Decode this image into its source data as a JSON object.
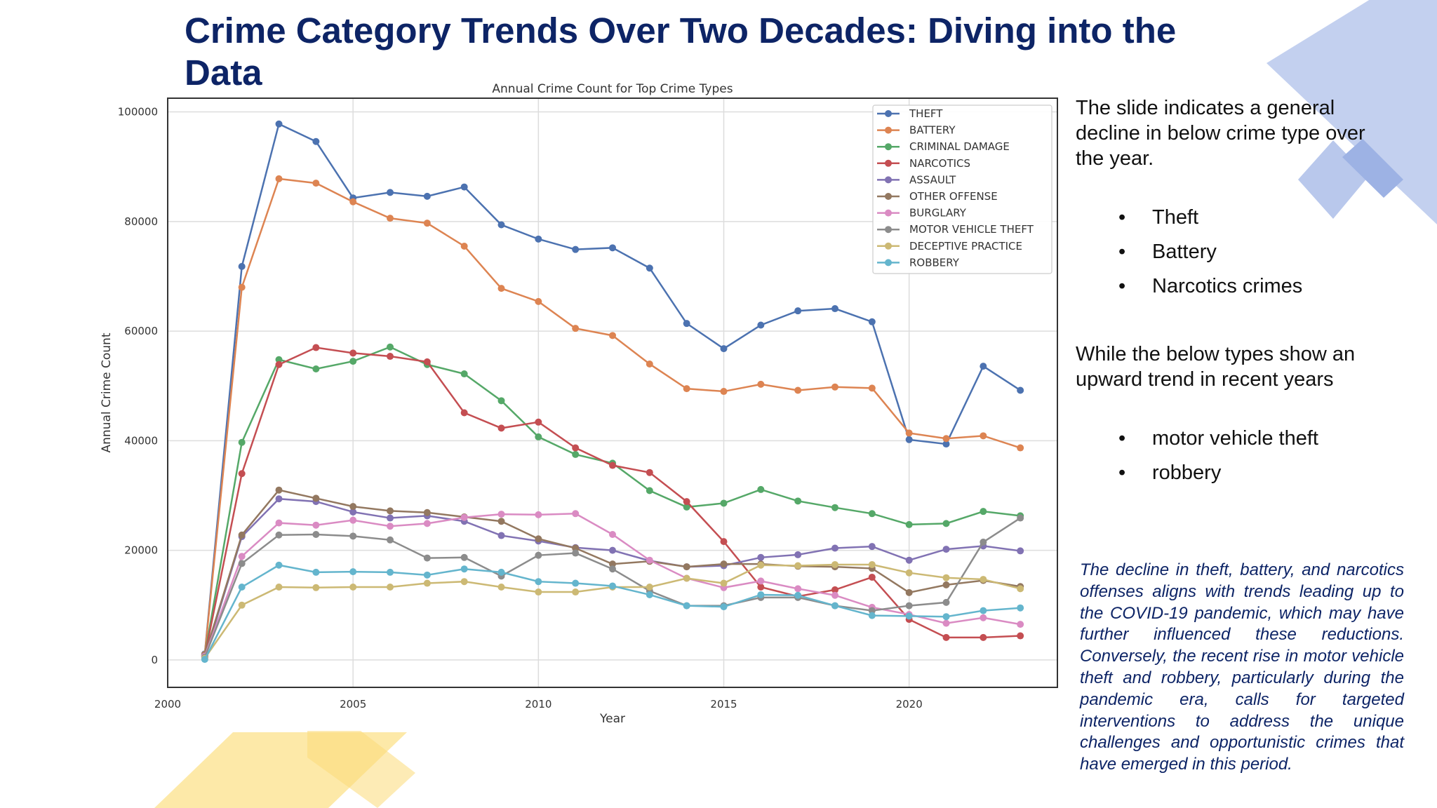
{
  "slide": {
    "title": "Crime Category Trends Over Two Decades: Diving into the Data",
    "intro": "The slide indicates a general decline in below crime type over the year.",
    "decline_items": [
      "Theft",
      "Battery",
      "Narcotics crimes"
    ],
    "upward_intro": "While the below types show an upward trend in recent years",
    "upward_items": [
      "motor vehicle theft",
      "robbery"
    ],
    "note": "The decline in theft, battery, and narcotics offenses aligns with trends leading up to the COVID-19 pandemic, which may have further influenced these reductions. Conversely, the recent rise in motor vehicle theft and robbery, particularly during the pandemic era, calls for targeted interventions to address the unique challenges and opportunistic crimes that have emerged in this period.",
    "bullet_symbol": "•"
  },
  "colors": {
    "title": "#0d2466",
    "note": "#0d2466",
    "deco_blue": "#b9c8ec",
    "deco_blue_dark": "#9db2e4",
    "deco_yellow": "#fde9a8",
    "deco_yellow_dark": "#fcdb78"
  },
  "chart_data": {
    "type": "line",
    "title": "Annual Crime Count for Top Crime Types",
    "xlabel": "Year",
    "ylabel": "Annual Crime Count",
    "xlim": [
      2000,
      2024
    ],
    "ylim": [
      -5000,
      102500
    ],
    "xticks": [
      2000,
      2005,
      2010,
      2015,
      2020
    ],
    "yticks": [
      0,
      20000,
      40000,
      60000,
      80000,
      100000
    ],
    "grid": true,
    "legend_position": "top-right",
    "x": [
      2001,
      2002,
      2003,
      2004,
      2005,
      2006,
      2007,
      2008,
      2009,
      2010,
      2011,
      2012,
      2013,
      2014,
      2015,
      2016,
      2017,
      2018,
      2019,
      2020,
      2021,
      2022,
      2023
    ],
    "series": [
      {
        "name": "THEFT",
        "color": "#4c72b0",
        "values": [
          1100,
          71800,
          97800,
          94600,
          84300,
          85300,
          84600,
          86300,
          79400,
          76800,
          74900,
          75200,
          71500,
          61400,
          56800,
          61100,
          63700,
          64100,
          61700,
          40200,
          39400,
          53600,
          49200
        ]
      },
      {
        "name": "BATTERY",
        "color": "#dd8452",
        "values": [
          1000,
          68000,
          87800,
          87000,
          83600,
          80600,
          79700,
          75500,
          67800,
          65400,
          60500,
          59200,
          54000,
          49500,
          49000,
          50300,
          49200,
          49800,
          49600,
          41400,
          40400,
          40900,
          38700
        ]
      },
      {
        "name": "CRIMINAL DAMAGE",
        "color": "#55a868",
        "values": [
          800,
          39700,
          54800,
          53100,
          54500,
          57100,
          53900,
          52200,
          47300,
          40700,
          37500,
          35900,
          30900,
          27900,
          28600,
          31100,
          29000,
          27800,
          26700,
          24700,
          24900,
          27100,
          26300
        ]
      },
      {
        "name": "NARCOTICS",
        "color": "#c44e52",
        "values": [
          700,
          34000,
          53900,
          57000,
          56000,
          55400,
          54400,
          45100,
          42300,
          43400,
          38700,
          35500,
          34200,
          28900,
          21600,
          13300,
          11600,
          12800,
          15100,
          7400,
          4100,
          4100,
          4400
        ]
      },
      {
        "name": "ASSAULT",
        "color": "#8172b3",
        "values": [
          500,
          22500,
          29400,
          28900,
          27000,
          25900,
          26300,
          25300,
          22700,
          21700,
          20500,
          20000,
          18100,
          17000,
          17200,
          18700,
          19200,
          20400,
          20700,
          18200,
          20200,
          20800,
          19900
        ]
      },
      {
        "name": "OTHER OFFENSE",
        "color": "#937860",
        "values": [
          900,
          22800,
          31000,
          29500,
          28000,
          27200,
          26900,
          26100,
          25300,
          22100,
          20400,
          17500,
          18000,
          17000,
          17500,
          17500,
          17100,
          17000,
          16700,
          12300,
          13700,
          14500,
          13400
        ]
      },
      {
        "name": "BURGLARY",
        "color": "#da8bc3",
        "values": [
          700,
          18900,
          25000,
          24600,
          25500,
          24400,
          24900,
          26000,
          26600,
          26500,
          26700,
          22900,
          18200,
          14900,
          13200,
          14400,
          13000,
          11800,
          9600,
          8300,
          6700,
          7700,
          6500
        ]
      },
      {
        "name": "MOTOR VEHICLE THEFT",
        "color": "#8c8c8c",
        "values": [
          500,
          17600,
          22800,
          22900,
          22600,
          21900,
          18600,
          18700,
          15300,
          19100,
          19500,
          16600,
          12600,
          9900,
          9900,
          11400,
          11400,
          9900,
          9000,
          9900,
          10500,
          21500,
          25900
        ]
      },
      {
        "name": "DECEPTIVE PRACTICE",
        "color": "#ccb974",
        "values": [
          300,
          10000,
          13300,
          13200,
          13300,
          13300,
          14000,
          14300,
          13300,
          12400,
          12400,
          13300,
          13300,
          14900,
          14000,
          17300,
          17200,
          17400,
          17400,
          15900,
          15000,
          14700,
          13000
        ]
      },
      {
        "name": "ROBBERY",
        "color": "#64b5cd",
        "values": [
          100,
          13300,
          17300,
          16000,
          16100,
          16000,
          15500,
          16600,
          16000,
          14300,
          14000,
          13500,
          11900,
          9900,
          9700,
          11900,
          11800,
          9900,
          8100,
          8000,
          7900,
          9000,
          9500
        ]
      }
    ]
  }
}
